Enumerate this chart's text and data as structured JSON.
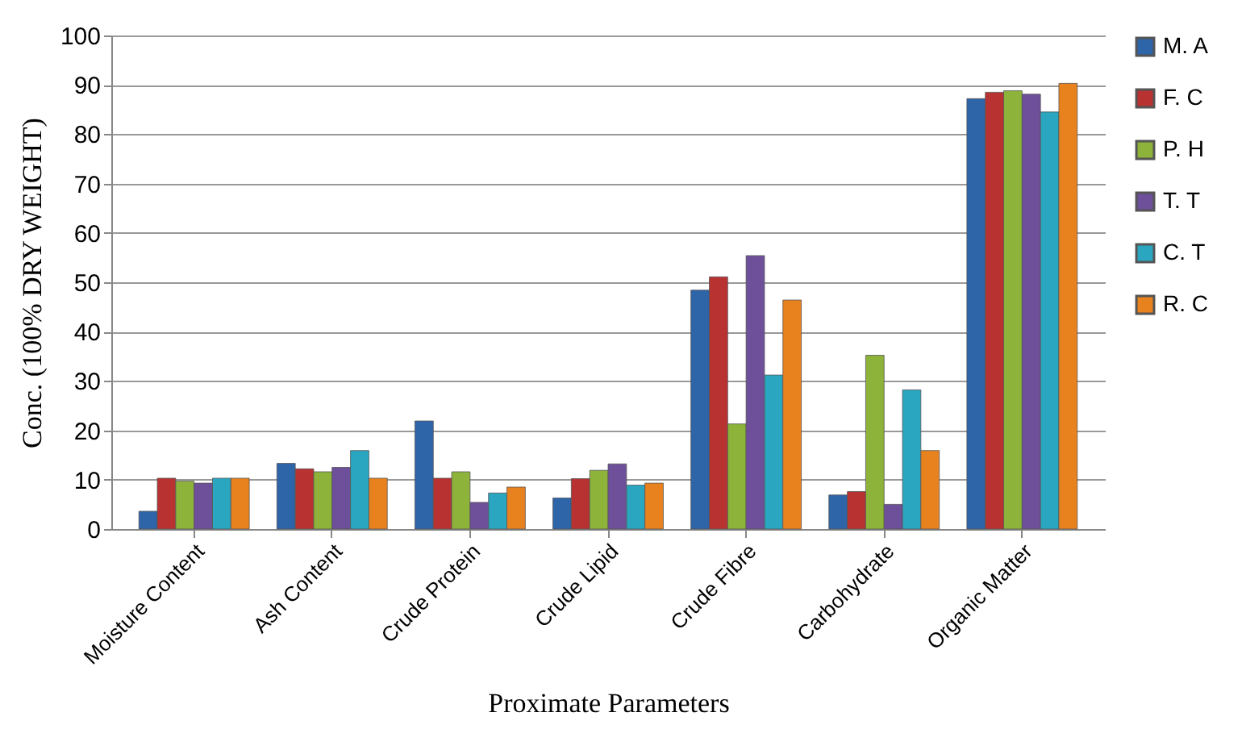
{
  "chart_data": {
    "type": "bar",
    "xlabel": "Proximate Parameters",
    "ylabel": "Conc. (100% DRY WEIGHT)",
    "categories": [
      "Moisture Content",
      "Ash Content",
      "Crude Protein",
      "Crude Lipid",
      "Crude Fibre",
      "Carbohydrate",
      "Organic Matter"
    ],
    "series": [
      {
        "name": "M. A",
        "color": "#2e64a8",
        "values": [
          3.6,
          13.3,
          21.9,
          6.3,
          48.4,
          6.9,
          87.2
        ]
      },
      {
        "name": "F. C",
        "color": "#b83232",
        "values": [
          10.3,
          12.2,
          10.3,
          10.2,
          51.1,
          7.6,
          88.5
        ]
      },
      {
        "name": "P. H",
        "color": "#8db33a",
        "values": [
          9.7,
          11.6,
          11.6,
          11.9,
          21.3,
          35.2,
          88.8
        ]
      },
      {
        "name": "T. T",
        "color": "#6e4f9a",
        "values": [
          9.3,
          12.5,
          5.4,
          13.2,
          55.4,
          5.0,
          88.1
        ]
      },
      {
        "name": "C. T",
        "color": "#2aa6c0",
        "values": [
          10.3,
          15.9,
          7.3,
          8.9,
          31.2,
          28.2,
          84.5
        ]
      },
      {
        "name": "R. C",
        "color": "#e8821f",
        "values": [
          10.3,
          10.3,
          8.5,
          9.3,
          46.4,
          15.9,
          90.3
        ]
      }
    ],
    "ylim": [
      0,
      100
    ],
    "yticks": [
      0,
      10,
      20,
      30,
      40,
      50,
      60,
      70,
      80,
      90,
      100
    ],
    "grid": "y",
    "legend": "right"
  }
}
